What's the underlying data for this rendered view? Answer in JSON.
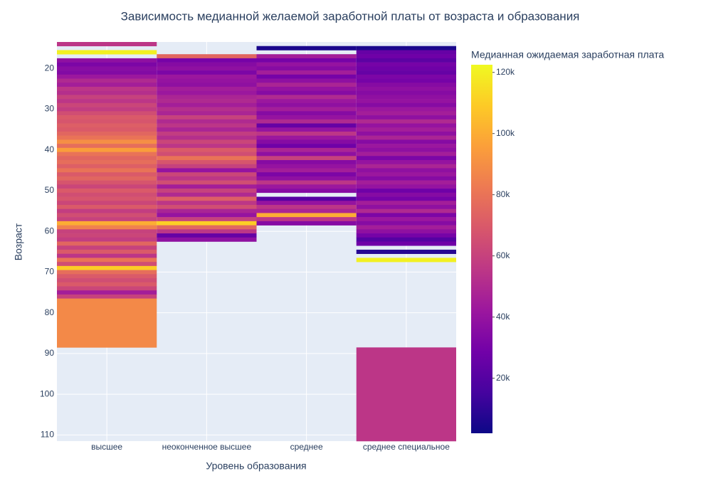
{
  "chart_data": {
    "type": "heatmap",
    "title": "Зависимость медианной желаемой заработной платы от возраста и образования",
    "x_label": "Уровень образования",
    "y_label": "Возраст",
    "colorbar_title": "Медианная ожидаемая заработная плата",
    "categories": [
      "высшее",
      "неоконченное высшее",
      "среднее",
      "среднее специальное"
    ],
    "y": [
      14,
      15,
      16,
      17,
      18,
      19,
      20,
      21,
      22,
      23,
      24,
      25,
      26,
      27,
      28,
      29,
      30,
      31,
      32,
      33,
      34,
      35,
      36,
      37,
      38,
      39,
      40,
      41,
      42,
      43,
      44,
      45,
      46,
      47,
      48,
      49,
      50,
      51,
      52,
      53,
      54,
      55,
      56,
      57,
      58,
      59,
      60,
      61,
      62,
      63,
      64,
      65,
      66,
      67,
      68,
      69,
      70,
      71,
      72,
      73,
      74,
      75,
      76,
      77,
      100
    ],
    "z": [
      [
        55000,
        null,
        null,
        null
      ],
      [
        null,
        null,
        5000,
        5000
      ],
      [
        120000,
        null,
        null,
        25000
      ],
      [
        null,
        75000,
        45000,
        28000
      ],
      [
        38000,
        30000,
        30000,
        22000
      ],
      [
        32000,
        35000,
        40000,
        30000
      ],
      [
        36000,
        38000,
        35000,
        28000
      ],
      [
        34000,
        32000,
        45000,
        25000
      ],
      [
        42000,
        42000,
        30000,
        32000
      ],
      [
        50000,
        40000,
        38000,
        30000
      ],
      [
        45000,
        38000,
        48000,
        35000
      ],
      [
        55000,
        45000,
        40000,
        38000
      ],
      [
        52000,
        42000,
        35000,
        35000
      ],
      [
        60000,
        48000,
        50000,
        38000
      ],
      [
        55000,
        50000,
        42000,
        40000
      ],
      [
        62000,
        45000,
        38000,
        35000
      ],
      [
        58000,
        52000,
        45000,
        42000
      ],
      [
        65000,
        48000,
        35000,
        45000
      ],
      [
        70000,
        60000,
        40000,
        38000
      ],
      [
        68000,
        50000,
        50000,
        50000
      ],
      [
        72000,
        55000,
        25000,
        40000
      ],
      [
        70000,
        48000,
        40000,
        45000
      ],
      [
        75000,
        58000,
        55000,
        38000
      ],
      [
        80000,
        52000,
        42000,
        48000
      ],
      [
        90000,
        62000,
        35000,
        35000
      ],
      [
        78000,
        55000,
        28000,
        42000
      ],
      [
        95000,
        70000,
        48000,
        38000
      ],
      [
        80000,
        65000,
        38000,
        45000
      ],
      [
        75000,
        80000,
        60000,
        32000
      ],
      [
        78000,
        68000,
        35000,
        40000
      ],
      [
        72000,
        60000,
        40000,
        48000
      ],
      [
        80000,
        40000,
        45000,
        38000
      ],
      [
        70000,
        62000,
        32000,
        42000
      ],
      [
        75000,
        55000,
        38000,
        35000
      ],
      [
        68000,
        65000,
        55000,
        45000
      ],
      [
        62000,
        45000,
        42000,
        40000
      ],
      [
        70000,
        60000,
        35000,
        28000
      ],
      [
        65000,
        50000,
        null,
        35000
      ],
      [
        68000,
        72000,
        20000,
        30000
      ],
      [
        62000,
        55000,
        40000,
        45000
      ],
      [
        70000,
        65000,
        55000,
        38000
      ],
      [
        58000,
        48000,
        48000,
        50000
      ],
      [
        65000,
        40000,
        100000,
        32000
      ],
      [
        60000,
        60000,
        55000,
        42000
      ],
      [
        100000,
        110000,
        35000,
        35000
      ],
      [
        85000,
        75000,
        null,
        45000
      ],
      [
        60000,
        55000,
        null,
        38000
      ],
      [
        62000,
        25000,
        null,
        30000
      ],
      [
        58000,
        38000,
        null,
        20000
      ],
      [
        75000,
        null,
        null,
        28000
      ],
      [
        60000,
        null,
        null,
        null
      ],
      [
        70000,
        null,
        null,
        8000
      ],
      [
        55000,
        null,
        null,
        null
      ],
      [
        80000,
        null,
        null,
        120000
      ],
      [
        65000,
        null,
        null,
        null
      ],
      [
        110000,
        null,
        null,
        null
      ],
      [
        78000,
        null,
        null,
        null
      ],
      [
        70000,
        null,
        null,
        null
      ],
      [
        65000,
        null,
        null,
        null
      ],
      [
        70000,
        null,
        null,
        null
      ],
      [
        62000,
        null,
        null,
        null
      ],
      [
        45000,
        null,
        null,
        null
      ],
      [
        60000,
        null,
        null,
        null
      ],
      [
        88000,
        null,
        null,
        null
      ],
      [
        null,
        null,
        null,
        55000
      ]
    ],
    "colorscale": [
      "#0d0887",
      "#46039f",
      "#7201a8",
      "#9c179e",
      "#bd3786",
      "#d8576b",
      "#ed7953",
      "#fb9f3a",
      "#fdca26",
      "#f0f921"
    ],
    "ylim": [
      13.5,
      111.5
    ],
    "y_reversed": true,
    "yticks": [
      20,
      30,
      40,
      50,
      60,
      70,
      80,
      90,
      100,
      110
    ],
    "zlim": [
      2000,
      122500
    ],
    "colorbar_ticks": [
      {
        "value": 20000,
        "label": "20k"
      },
      {
        "value": 40000,
        "label": "40k"
      },
      {
        "value": 60000,
        "label": "60k"
      },
      {
        "value": 80000,
        "label": "80k"
      },
      {
        "value": 100000,
        "label": "100k"
      },
      {
        "value": 120000,
        "label": "120k"
      }
    ],
    "grid": true
  }
}
